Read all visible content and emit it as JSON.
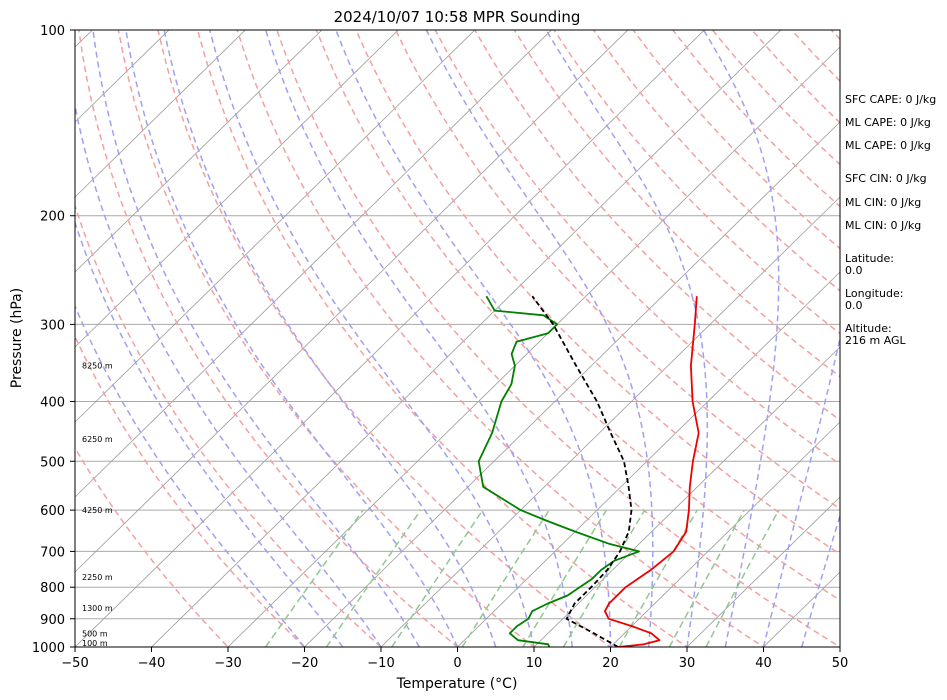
{
  "chart_data": {
    "type": "skew-t",
    "title": "2024/10/07 10:58 MPR Sounding",
    "xlabel": "Temperature (°C)",
    "ylabel": "Pressure (hPa)",
    "xlim": [
      -50,
      50
    ],
    "ylim": [
      1000,
      100
    ],
    "y_scale": "log",
    "grid": true,
    "x_ticks": [
      "−50",
      "−40",
      "−30",
      "−20",
      "−10",
      "0",
      "10",
      "20",
      "30",
      "40",
      "50"
    ],
    "x_tick_values": [
      -50,
      -40,
      -30,
      -20,
      -10,
      0,
      10,
      20,
      30,
      40,
      50
    ],
    "y_ticks": [
      "100",
      "200",
      "300",
      "400",
      "500",
      "600",
      "700",
      "800",
      "900",
      "1000"
    ],
    "y_tick_values": [
      100,
      200,
      300,
      400,
      500,
      600,
      700,
      800,
      900,
      1000
    ],
    "colors": {
      "temperature": "#ee0000",
      "dewpoint": "#008000",
      "parcel": "#000000",
      "dry_adiabats": "#f4a0a0",
      "moist_adiabats": "#a0a0f0",
      "mixing_ratio": "#90c890",
      "isotherms": "#999999"
    },
    "series": [
      {
        "key": "temperature",
        "points": [
          [
            1000,
            21
          ],
          [
            990,
            24
          ],
          [
            975,
            25.5
          ],
          [
            950,
            23.5
          ],
          [
            925,
            20
          ],
          [
            900,
            16
          ],
          [
            875,
            14.5
          ],
          [
            850,
            14
          ],
          [
            800,
            14
          ],
          [
            750,
            15
          ],
          [
            700,
            15.5
          ],
          [
            650,
            14.5
          ],
          [
            600,
            12
          ],
          [
            550,
            9
          ],
          [
            500,
            6
          ],
          [
            450,
            3
          ],
          [
            400,
            -2
          ],
          [
            350,
            -7
          ],
          [
            300,
            -12
          ],
          [
            270,
            -15.5
          ]
        ]
      },
      {
        "key": "dewpoint",
        "points": [
          [
            1000,
            12
          ],
          [
            990,
            11.5
          ],
          [
            975,
            7
          ],
          [
            950,
            5
          ],
          [
            925,
            5
          ],
          [
            900,
            5.5
          ],
          [
            875,
            5
          ],
          [
            850,
            6
          ],
          [
            825,
            7.5
          ],
          [
            800,
            8
          ],
          [
            775,
            8.5
          ],
          [
            750,
            8.5
          ],
          [
            725,
            9
          ],
          [
            700,
            11
          ],
          [
            680,
            6
          ],
          [
            650,
            0
          ],
          [
            625,
            -5
          ],
          [
            600,
            -10
          ],
          [
            550,
            -18
          ],
          [
            500,
            -22
          ],
          [
            450,
            -24
          ],
          [
            400,
            -27
          ],
          [
            375,
            -28
          ],
          [
            350,
            -30
          ],
          [
            335,
            -32
          ],
          [
            320,
            -33
          ],
          [
            310,
            -30
          ],
          [
            300,
            -30
          ],
          [
            290,
            -33
          ],
          [
            285,
            -40
          ],
          [
            270,
            -43
          ]
        ]
      },
      {
        "key": "parcel",
        "points": [
          [
            1000,
            21
          ],
          [
            950,
            16
          ],
          [
            900,
            10.5
          ],
          [
            850,
            9.5
          ],
          [
            800,
            9.5
          ],
          [
            750,
            9.3
          ],
          [
            700,
            8.5
          ],
          [
            650,
            7
          ],
          [
            600,
            4.5
          ],
          [
            550,
            1
          ],
          [
            500,
            -3
          ],
          [
            450,
            -8.5
          ],
          [
            400,
            -14.5
          ],
          [
            350,
            -22
          ],
          [
            300,
            -30.5
          ],
          [
            270,
            -37
          ]
        ]
      }
    ],
    "height_labels": [
      {
        "text": "100 m",
        "pressure": 985
      },
      {
        "text": "500 m",
        "pressure": 950
      },
      {
        "text": "1300 m",
        "pressure": 865
      },
      {
        "text": "2250 m",
        "pressure": 770
      },
      {
        "text": "4250 m",
        "pressure": 600
      },
      {
        "text": "6250 m",
        "pressure": 460
      },
      {
        "text": "8250 m",
        "pressure": 350
      }
    ],
    "stats": [
      {
        "text": "SFC CAPE: 0 J/kg"
      },
      {
        "text": "ML CAPE: 0 J/kg"
      },
      {
        "text": "ML CAPE: 0 J/kg"
      },
      {
        "text": "SFC CIN: 0 J/kg"
      },
      {
        "text": "ML CIN: 0 J/kg"
      },
      {
        "text": "ML CIN: 0 J/kg"
      },
      {
        "text": "Latitude:"
      },
      {
        "text": "0.0"
      },
      {
        "text": "Longitude:"
      },
      {
        "text": "0.0"
      },
      {
        "text": "Altitude:"
      },
      {
        "text": "216 m AGL"
      }
    ]
  }
}
